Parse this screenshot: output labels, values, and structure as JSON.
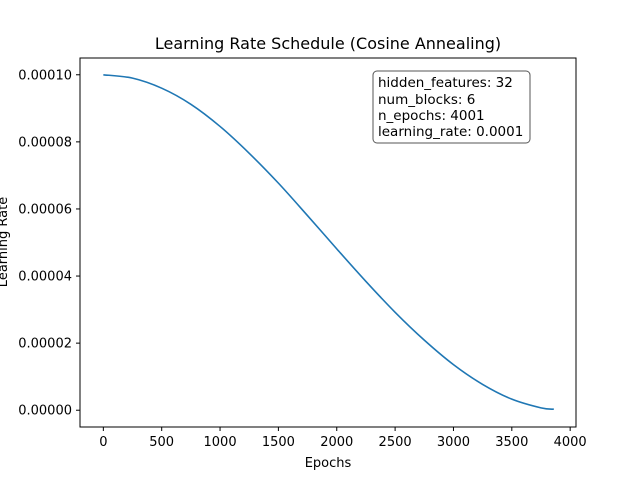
{
  "chart_data": {
    "type": "line",
    "title": "Learning Rate Schedule (Cosine Annealing)",
    "xlabel": "Epochs",
    "ylabel": "Learning Rate",
    "xlim": [
      -200,
      4050
    ],
    "ylim": [
      -5e-06,
      0.000105
    ],
    "xticks": [
      0,
      500,
      1000,
      1500,
      2000,
      2500,
      3000,
      3500,
      4000
    ],
    "xtick_labels": [
      "0",
      "500",
      "1000",
      "1500",
      "2000",
      "2500",
      "3000",
      "3500",
      "4000"
    ],
    "yticks": [
      0.0,
      2e-05,
      4e-05,
      6e-05,
      8e-05,
      0.0001
    ],
    "ytick_labels": [
      "0.00000",
      "0.00002",
      "0.00004",
      "0.00006",
      "0.00008",
      "0.00010"
    ],
    "grid": false,
    "line_color": "#1f77b4",
    "series": [
      {
        "x": [
          0,
          250,
          500,
          750,
          1000,
          1250,
          1500,
          1750,
          2000,
          2250,
          2500,
          2750,
          3000,
          3250,
          3500,
          3750,
          3860
        ],
        "values": [
          0.0001,
          9.9e-05,
          9.6e-05,
          9.12e-05,
          8.46e-05,
          7.66e-05,
          6.77e-05,
          5.8e-05,
          4.81e-05,
          3.84e-05,
          2.92e-05,
          2.09e-05,
          1.36e-05,
          7.7e-06,
          3.3e-06,
          7e-07,
          3e-07
        ]
      }
    ],
    "annotation": {
      "lines": [
        "hidden_features: 32",
        "num_blocks: 6",
        "n_epochs: 4001",
        "learning_rate: 0.0001"
      ],
      "placement": "top-right"
    }
  }
}
